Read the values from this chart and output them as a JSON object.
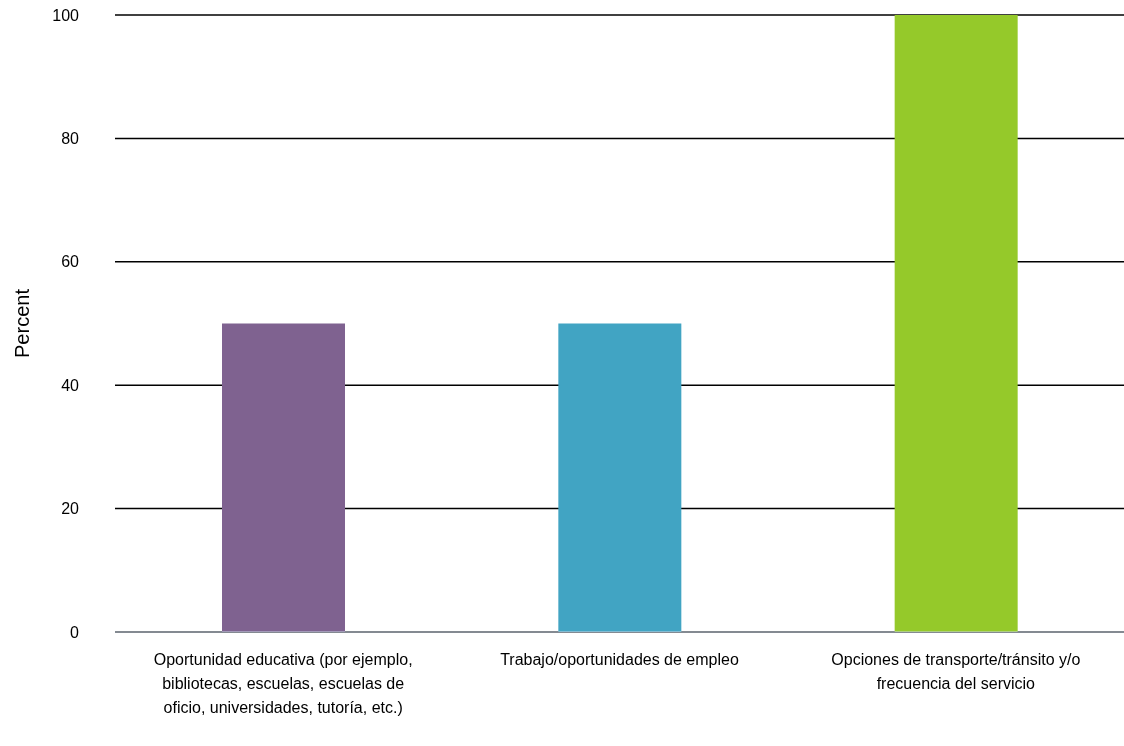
{
  "chart_data": {
    "type": "bar",
    "ylabel": "Percent",
    "categories": [
      "Oportunidad educativa (por ejemplo, bibliotecas, escuelas, escuelas de oficio, universidades, tutoría, etc.)",
      "Trabajo/oportunidades de empleo",
      "Opciones de transporte/tránsito y/o frecuencia del servicio"
    ],
    "values": [
      50,
      50,
      100
    ],
    "colors": [
      "#7f6290",
      "#41a4c3",
      "#95c92a"
    ],
    "ylim": [
      0,
      100
    ],
    "yticks": [
      0,
      20,
      40,
      60,
      80,
      100
    ],
    "grid": "y"
  }
}
